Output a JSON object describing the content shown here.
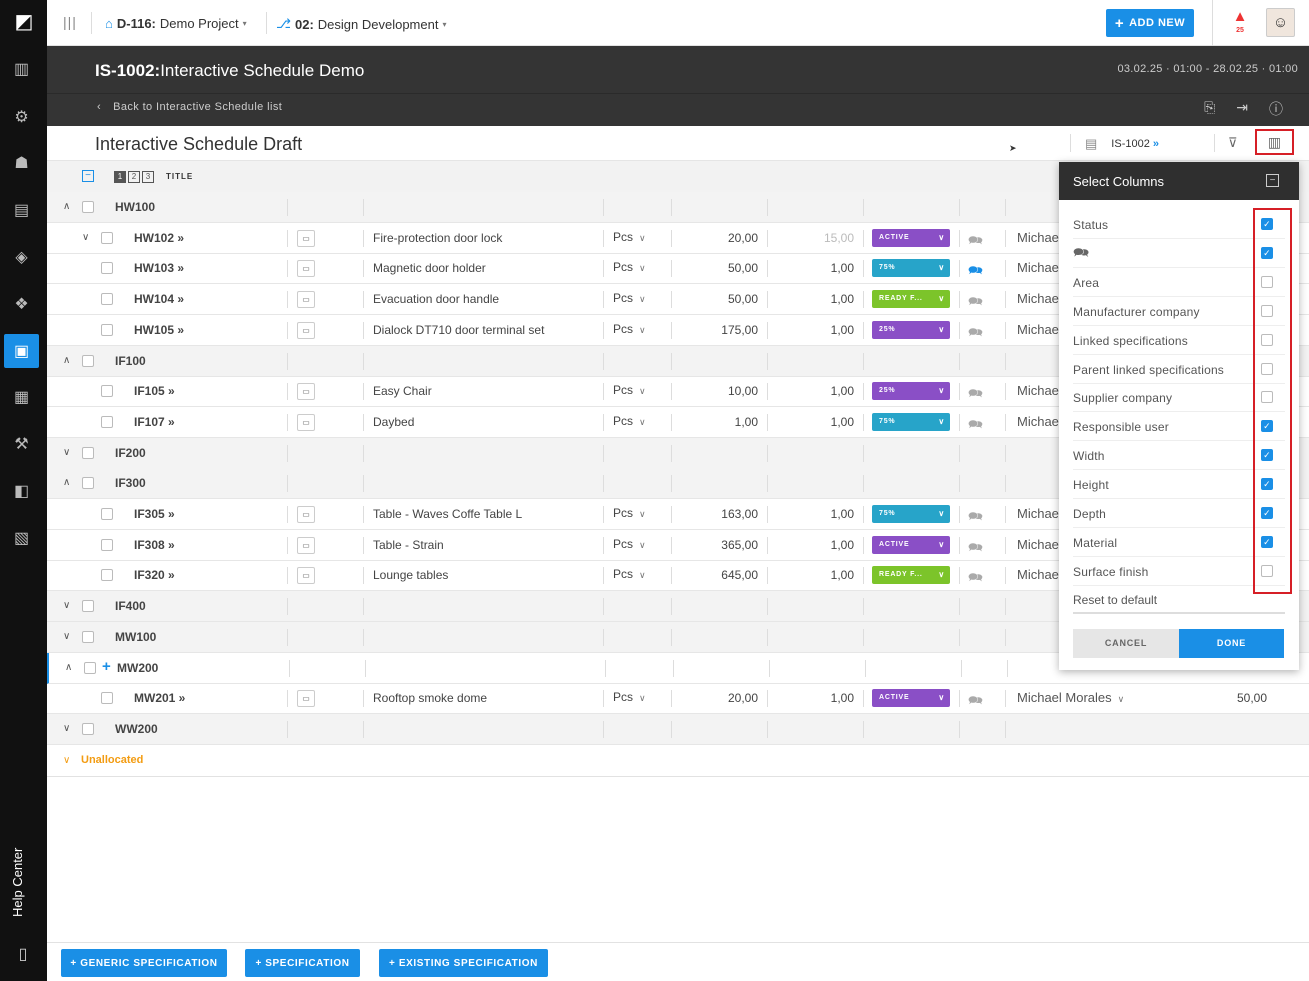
{
  "topbar": {
    "project_code": "D-116:",
    "project_name": "Demo Project",
    "phase_code": "02:",
    "phase_name": "Design Development",
    "add_new": "ADD NEW",
    "notif_count": "25"
  },
  "header": {
    "code": "IS-1002:",
    "title": "Interactive Schedule Demo",
    "date_range": "03.02.25 · 01:00 - 28.02.25 · 01:00",
    "back": "Back to Interactive Schedule list"
  },
  "subheader": {
    "title": "Interactive Schedule Draft",
    "ref": "IS-1002",
    "ref_arrow": "»"
  },
  "table": {
    "levels": [
      "1",
      "2",
      "3"
    ],
    "title_col": "TITLE",
    "rows": [
      {
        "kind": "group",
        "name": "HW100",
        "expanded": true
      },
      {
        "kind": "item",
        "code": "HW102 »",
        "desc": "Fire-protection door lock",
        "unit": "Pcs",
        "qty": "20,00",
        "rate": "15,00",
        "status": "ACTIVE",
        "status_color": "#8a4fc6",
        "user": "Michae",
        "expandable": true
      },
      {
        "kind": "item",
        "code": "HW103 »",
        "desc": "Magnetic door holder",
        "unit": "Pcs",
        "qty": "50,00",
        "rate": "1,00",
        "status": "75%",
        "status_color": "#27a4c9",
        "user": "Michae",
        "comment_blue": true
      },
      {
        "kind": "item",
        "code": "HW104 »",
        "desc": "Evacuation door handle",
        "unit": "Pcs",
        "qty": "50,00",
        "rate": "1,00",
        "status": "READY F...",
        "status_color": "#7cc42a",
        "user": "Michae"
      },
      {
        "kind": "item",
        "code": "HW105 »",
        "desc": "Dialock DT710 door terminal set",
        "unit": "Pcs",
        "qty": "175,00",
        "rate": "1,00",
        "status": "25%",
        "status_color": "#8a4fc6",
        "user": "Michae"
      },
      {
        "kind": "group",
        "name": "IF100",
        "expanded": true
      },
      {
        "kind": "item",
        "code": "IF105 »",
        "desc": "Easy Chair",
        "unit": "Pcs",
        "qty": "10,00",
        "rate": "1,00",
        "status": "25%",
        "status_color": "#8a4fc6",
        "user": "Michae"
      },
      {
        "kind": "item",
        "code": "IF107 »",
        "desc": "Daybed",
        "unit": "Pcs",
        "qty": "1,00",
        "rate": "1,00",
        "status": "75%",
        "status_color": "#27a4c9",
        "user": "Michae"
      },
      {
        "kind": "group",
        "name": "IF200",
        "expanded": false
      },
      {
        "kind": "group",
        "name": "IF300",
        "expanded": true
      },
      {
        "kind": "item",
        "code": "IF305 »",
        "desc": "Table - Waves Coffe Table L",
        "unit": "Pcs",
        "qty": "163,00",
        "rate": "1,00",
        "status": "75%",
        "status_color": "#27a4c9",
        "user": "Michae"
      },
      {
        "kind": "item",
        "code": "IF308 »",
        "desc": "Table - Strain",
        "unit": "Pcs",
        "qty": "365,00",
        "rate": "1,00",
        "status": "ACTIVE",
        "status_color": "#8a4fc6",
        "user": "Michae"
      },
      {
        "kind": "item",
        "code": "IF320 »",
        "desc": "Lounge tables",
        "unit": "Pcs",
        "qty": "645,00",
        "rate": "1,00",
        "status": "READY F...",
        "status_color": "#7cc42a",
        "user": "Michae"
      },
      {
        "kind": "group",
        "name": "IF400",
        "expanded": false
      },
      {
        "kind": "group",
        "name": "MW100",
        "expanded": false
      },
      {
        "kind": "group",
        "name": "MW200",
        "expanded": true,
        "selected": true
      },
      {
        "kind": "item",
        "code": "MW201 »",
        "desc": "Rooftop smoke dome",
        "unit": "Pcs",
        "qty": "20,00",
        "rate": "1,00",
        "status": "ACTIVE",
        "status_color": "#8a4fc6",
        "user": "Michael Morales",
        "user_dd": true,
        "value": "50,00"
      },
      {
        "kind": "group",
        "name": "WW200",
        "expanded": false
      }
    ],
    "unallocated": "Unallocated"
  },
  "bottom": {
    "generic": "+ GENERIC SPECIFICATION",
    "spec": "+ SPECIFICATION",
    "existing": "+ EXISTING SPECIFICATION"
  },
  "panel": {
    "title": "Select Columns",
    "items": [
      {
        "label": "Status",
        "checked": true
      },
      {
        "label": "",
        "icon": "comment-icon",
        "checked": true
      },
      {
        "label": "Area",
        "checked": false
      },
      {
        "label": "Manufacturer company",
        "checked": false
      },
      {
        "label": "Linked specifications",
        "checked": false
      },
      {
        "label": "Parent linked specifications",
        "checked": false
      },
      {
        "label": "Supplier company",
        "checked": false
      },
      {
        "label": "Responsible user",
        "checked": true
      },
      {
        "label": "Width",
        "checked": true
      },
      {
        "label": "Height",
        "checked": true
      },
      {
        "label": "Depth",
        "checked": true
      },
      {
        "label": "Material",
        "checked": true
      },
      {
        "label": "Surface finish",
        "checked": false
      }
    ],
    "reset": "Reset to default",
    "cancel": "CANCEL",
    "done": "DONE"
  },
  "sidebar": {
    "help": "Help Center"
  }
}
